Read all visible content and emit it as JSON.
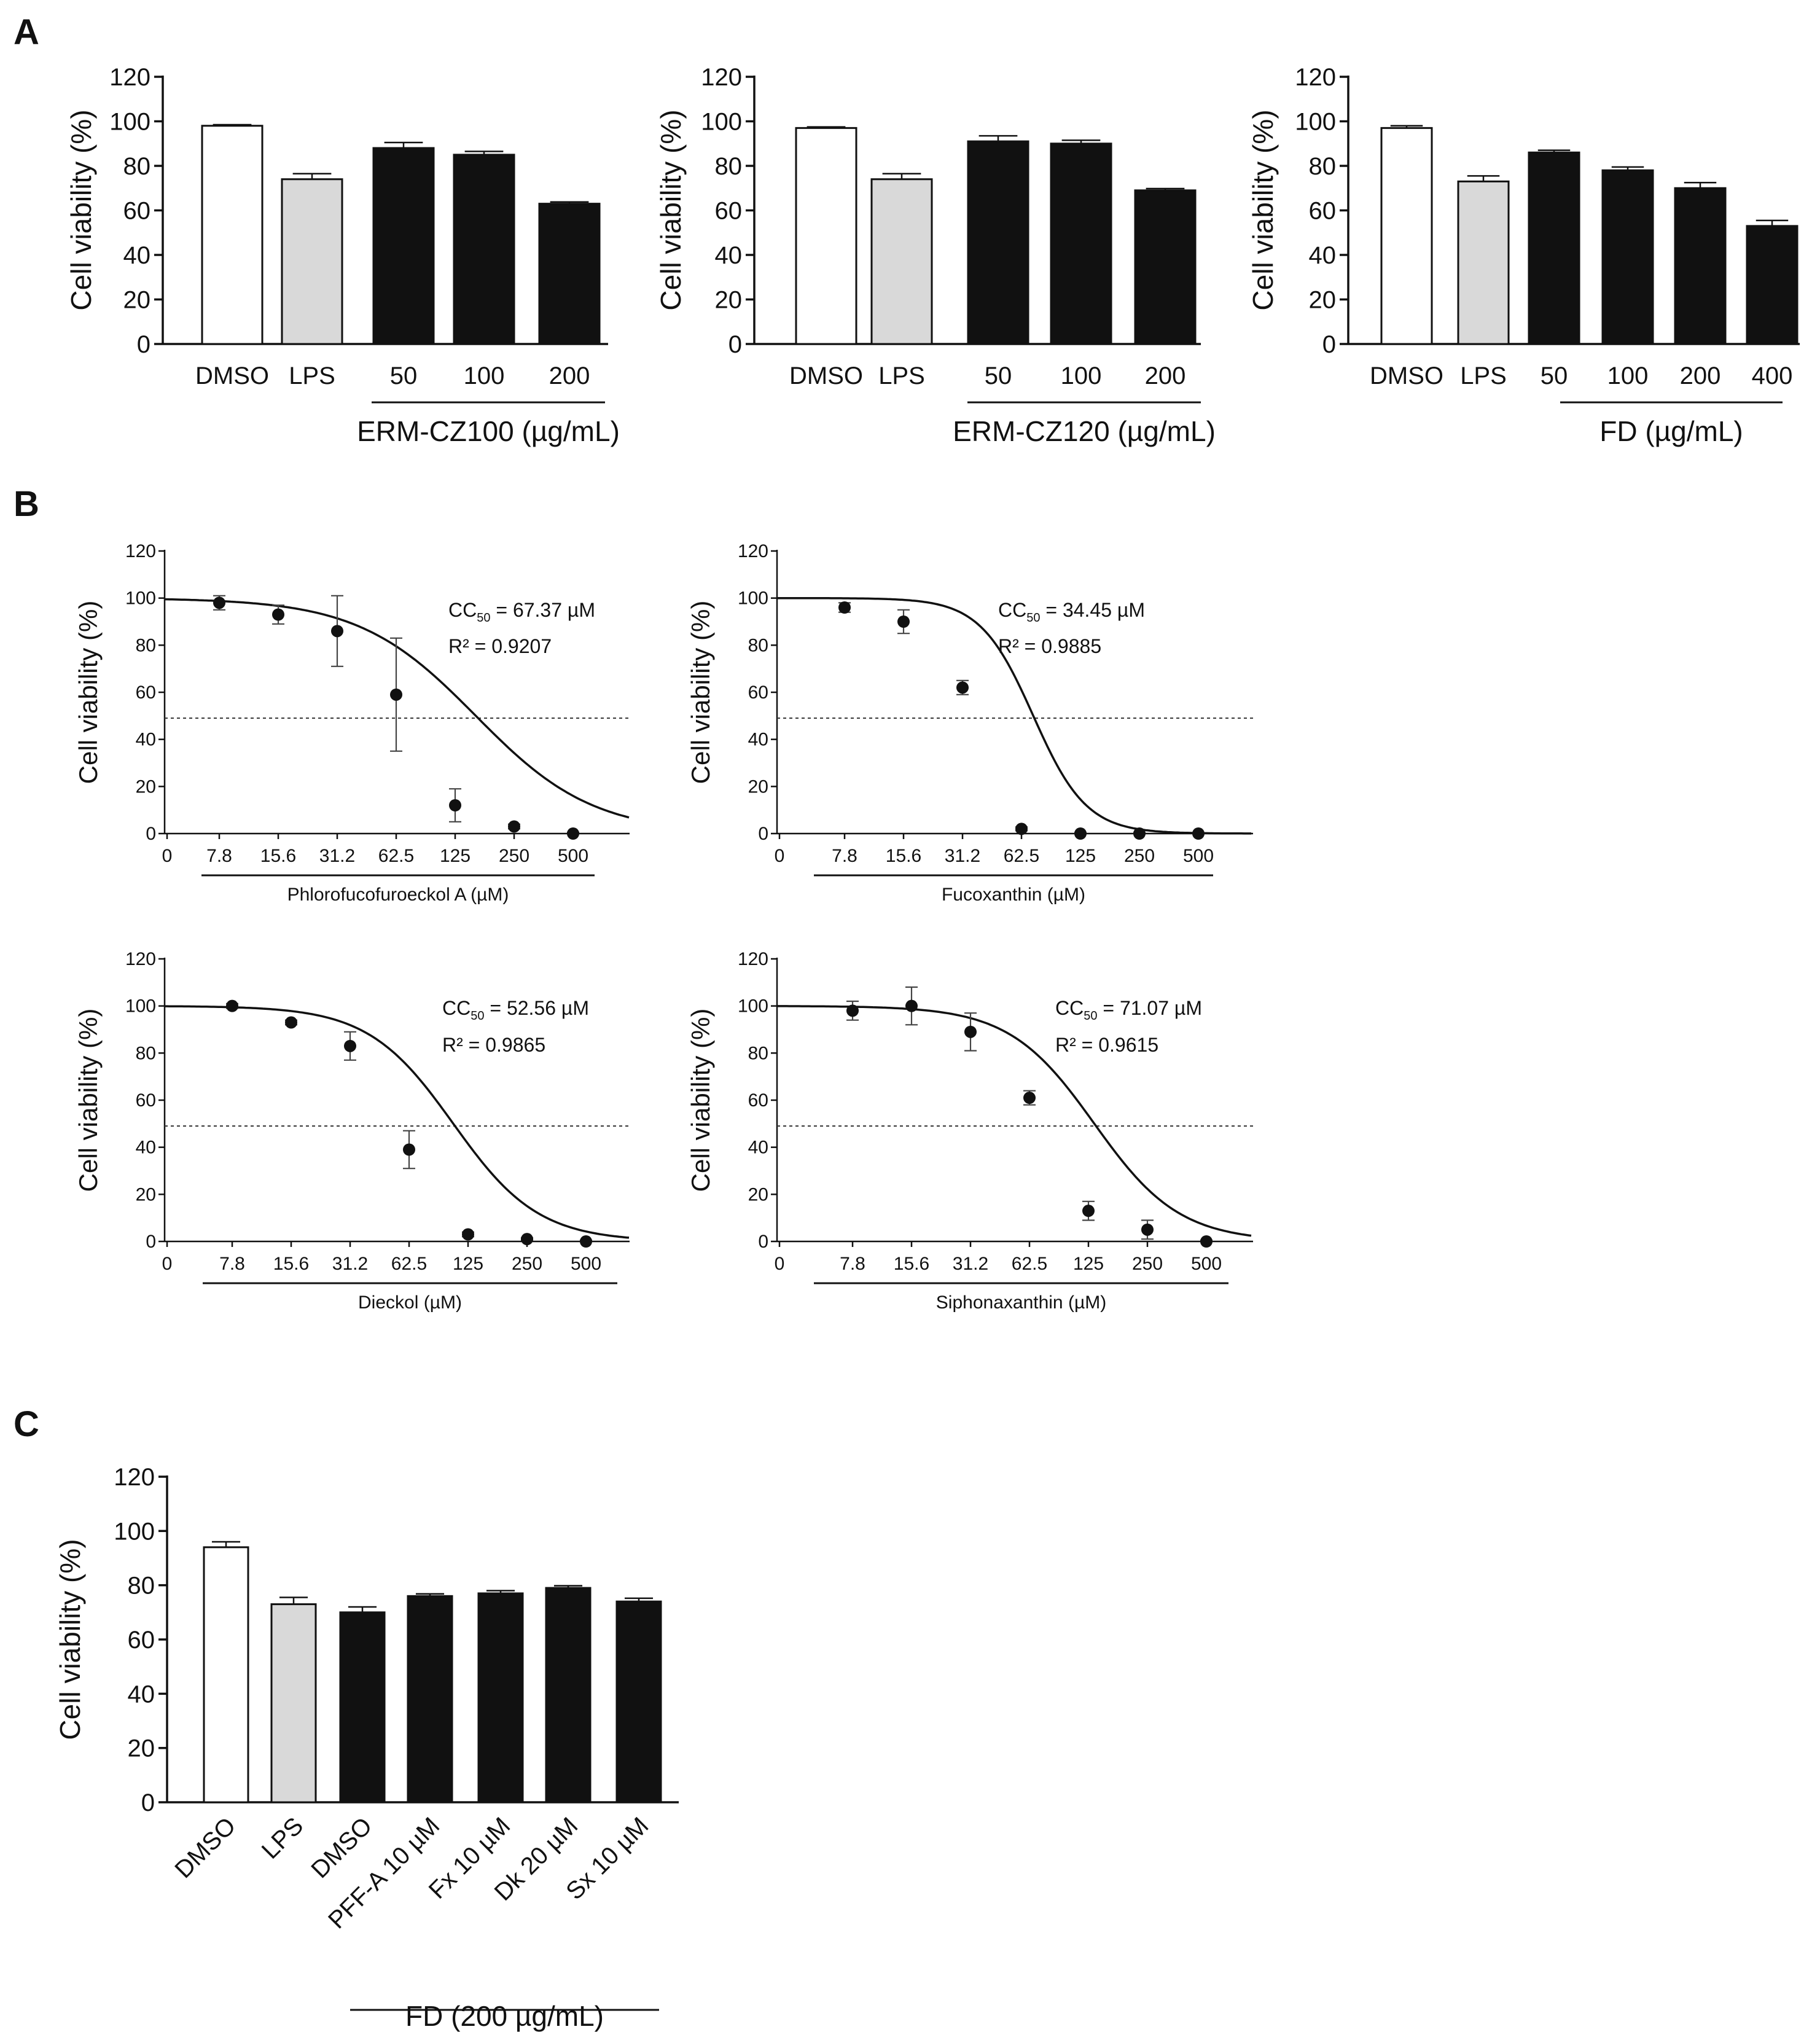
{
  "panels": {
    "A": "A",
    "B": "B",
    "C": "C"
  },
  "chart_data": [
    {
      "id": "A1",
      "type": "bar",
      "ylabel": "Cell viability (%)",
      "ylim": [
        0,
        120
      ],
      "yticks": [
        0,
        20,
        40,
        60,
        80,
        100,
        120
      ],
      "categories": [
        "DMSO",
        "LPS",
        "50",
        "100",
        "200"
      ],
      "values": [
        98,
        74,
        88,
        85,
        63
      ],
      "errors": [
        0.5,
        2.5,
        2.5,
        1.5,
        0.8
      ],
      "fills": [
        "#ffffff",
        "#d9d9d9",
        "#111111",
        "#111111",
        "#111111"
      ],
      "group_label": "ERM-CZ100 (µg/mL)",
      "group_span": [
        2,
        4
      ]
    },
    {
      "id": "A2",
      "type": "bar",
      "ylabel": "Cell viability (%)",
      "ylim": [
        0,
        120
      ],
      "yticks": [
        0,
        20,
        40,
        60,
        80,
        100,
        120
      ],
      "categories": [
        "DMSO",
        "LPS",
        "50",
        "100",
        "200"
      ],
      "values": [
        97,
        74,
        91,
        90,
        69
      ],
      "errors": [
        0.5,
        2.5,
        2.5,
        1.5,
        0.8
      ],
      "fills": [
        "#ffffff",
        "#d9d9d9",
        "#111111",
        "#111111",
        "#111111"
      ],
      "group_label": "ERM-CZ120 (µg/mL)",
      "group_span": [
        2,
        4
      ]
    },
    {
      "id": "A3",
      "type": "bar",
      "ylabel": "Cell viability (%)",
      "ylim": [
        0,
        120
      ],
      "yticks": [
        0,
        20,
        40,
        60,
        80,
        100,
        120
      ],
      "categories": [
        "DMSO",
        "LPS",
        "50",
        "100",
        "200",
        "400"
      ],
      "values": [
        97,
        73,
        86,
        78,
        70,
        53
      ],
      "errors": [
        1,
        2.5,
        1,
        1.5,
        2.5,
        2.5
      ],
      "fills": [
        "#ffffff",
        "#d9d9d9",
        "#111111",
        "#111111",
        "#111111",
        "#111111"
      ],
      "group_label": "FD (µg/mL)",
      "group_span": [
        2,
        5
      ]
    },
    {
      "id": "B1",
      "type": "scatter",
      "ylabel": "Cell viability (%)",
      "ylim": [
        0,
        120
      ],
      "yticks": [
        0,
        20,
        40,
        60,
        80,
        100,
        120
      ],
      "x_tick_labels": [
        "0",
        "7.8",
        "15.6",
        "31.2",
        "62.5",
        "125",
        "250",
        "500"
      ],
      "x_log2": [
        0,
        1,
        2,
        3,
        4,
        5,
        6
      ],
      "points": [
        98,
        93,
        86,
        59,
        12,
        3,
        0
      ],
      "errors": [
        3,
        4,
        15,
        24,
        7,
        1,
        0.5
      ],
      "fit_top": 100,
      "fit_x50_log2": 4.35,
      "fit_slope": 1.45,
      "cc_label": "CC",
      "cc_sub": "50",
      "cc_value": " = 67.37 µM",
      "r2": "R² = 0.9207",
      "xlabel": "Phlorofucofuroeckol A (µM)",
      "reference_line": 49
    },
    {
      "id": "B2",
      "type": "scatter",
      "ylabel": "Cell viability (%)",
      "ylim": [
        0,
        120
      ],
      "yticks": [
        0,
        20,
        40,
        60,
        80,
        100,
        120
      ],
      "x_tick_labels": [
        "0",
        "7.8",
        "15.6",
        "31.2",
        "62.5",
        "125",
        "250",
        "500"
      ],
      "x_log2": [
        0,
        1,
        2,
        3,
        4,
        5,
        6
      ],
      "points": [
        96,
        90,
        62,
        2,
        0,
        0,
        0
      ],
      "errors": [
        2,
        5,
        3,
        0.8,
        0.4,
        0.4,
        0.4
      ],
      "fit_top": 100,
      "fit_x50_log2": 3.2,
      "fit_slope": 3.2,
      "cc_label": "CC",
      "cc_sub": "50",
      "cc_value": " = 34.45 µM",
      "r2": "R² = 0.9885",
      "xlabel": "Fucoxanthin (µM)",
      "reference_line": 49
    },
    {
      "id": "B3",
      "type": "scatter",
      "ylabel": "Cell viability (%)",
      "ylim": [
        0,
        120
      ],
      "yticks": [
        0,
        20,
        40,
        60,
        80,
        100,
        120
      ],
      "x_tick_labels": [
        "0",
        "7.8",
        "15.6",
        "31.2",
        "62.5",
        "125",
        "250",
        "500"
      ],
      "x_log2": [
        0,
        1,
        2,
        3,
        4,
        5,
        6
      ],
      "points": [
        100,
        93,
        83,
        39,
        3,
        1,
        0
      ],
      "errors": [
        1,
        1,
        6,
        8,
        1,
        0.5,
        0.5
      ],
      "fit_top": 100,
      "fit_x50_log2": 3.75,
      "fit_slope": 2.0,
      "cc_label": "CC",
      "cc_sub": "50",
      "cc_value": " = 52.56 µM",
      "r2": "R² = 0.9865",
      "xlabel": "Dieckol (µM)",
      "reference_line": 49
    },
    {
      "id": "B4",
      "type": "scatter",
      "ylabel": "Cell viability (%)",
      "ylim": [
        0,
        120
      ],
      "yticks": [
        0,
        20,
        40,
        60,
        80,
        100,
        120
      ],
      "x_tick_labels": [
        "0",
        "7.8",
        "15.6",
        "31.2",
        "62.5",
        "125",
        "250",
        "500"
      ],
      "x_log2": [
        0,
        1,
        2,
        3,
        4,
        5,
        6
      ],
      "points": [
        98,
        100,
        89,
        61,
        13,
        5,
        0
      ],
      "errors": [
        4,
        8,
        8,
        3,
        4,
        4,
        0.5
      ],
      "fit_top": 100,
      "fit_x50_log2": 4.1,
      "fit_slope": 2.0,
      "cc_label": "CC",
      "cc_sub": "50",
      "cc_value": " = 71.07 µM",
      "r2": "R² = 0.9615",
      "xlabel": "Siphonaxanthin (µM)",
      "reference_line": 49
    },
    {
      "id": "C",
      "type": "bar",
      "ylabel": "Cell viability (%)",
      "ylim": [
        0,
        120
      ],
      "yticks": [
        0,
        20,
        40,
        60,
        80,
        100,
        120
      ],
      "categories": [
        "DMSO",
        "LPS",
        "DMSO",
        "PFF-A 10 µM",
        "Fx 10 µM",
        "Dk 20 µM",
        "Sx 10 µM"
      ],
      "values": [
        94,
        73,
        70,
        76,
        77,
        79,
        74
      ],
      "errors": [
        2,
        2.5,
        2,
        0.8,
        1,
        0.8,
        1.2
      ],
      "fills": [
        "#ffffff",
        "#d9d9d9",
        "#111111",
        "#111111",
        "#111111",
        "#111111",
        "#111111"
      ],
      "group_label": "FD (200 µg/mL)",
      "group_span": [
        2,
        6
      ]
    }
  ]
}
